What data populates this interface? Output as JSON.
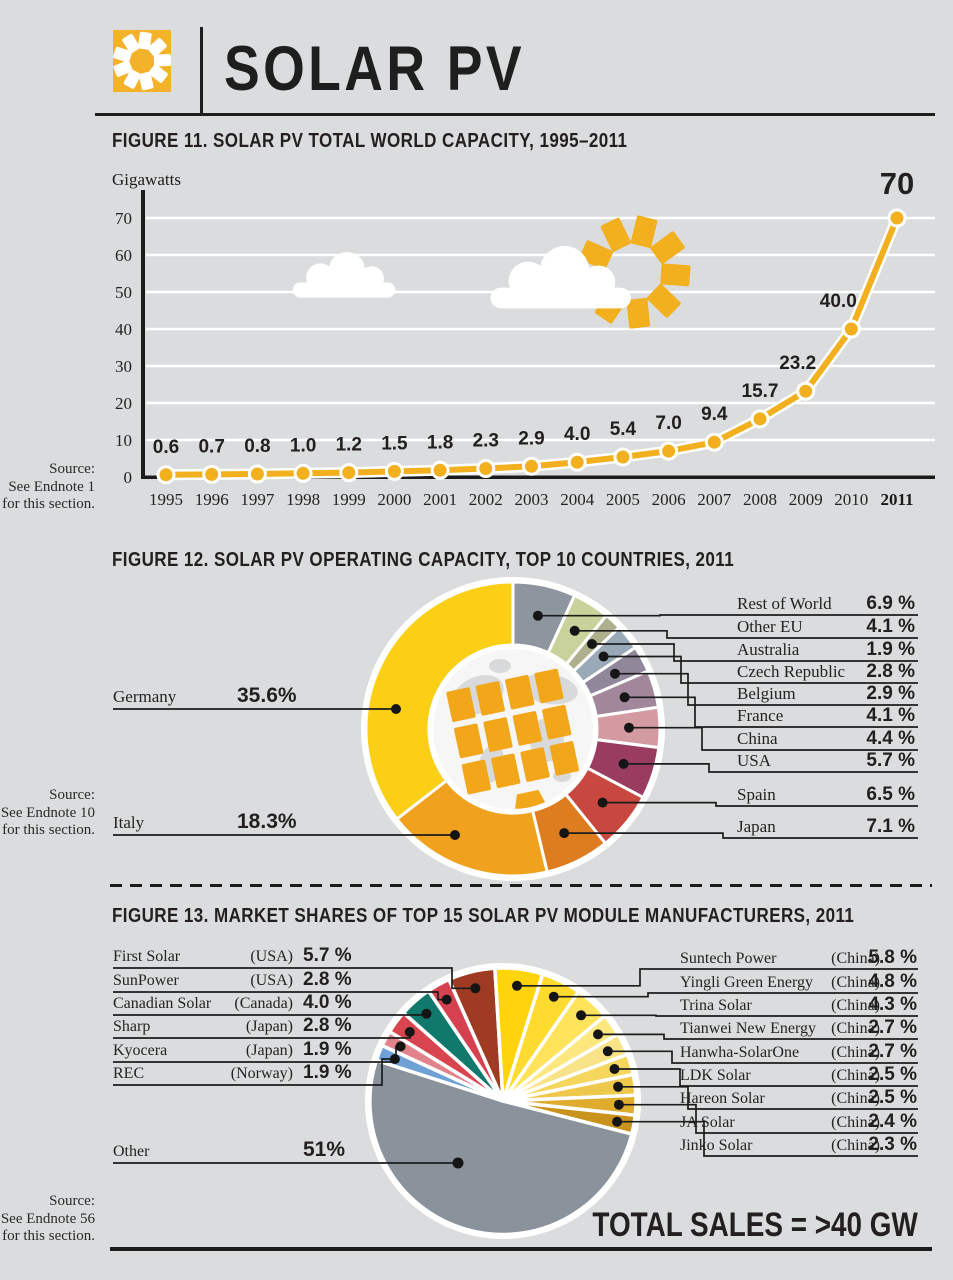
{
  "page": {
    "background": "#DBDCDD"
  },
  "header": {
    "title": "SOLAR PV",
    "logo_icon": "sun-icon",
    "logo_bg_color": "#F3B229"
  },
  "chart_data": [
    {
      "id": "figure11",
      "type": "line",
      "title": "FIGURE 11. SOLAR PV TOTAL WORLD CAPACITY, 1995–2011",
      "ylabel": "Gigawatts",
      "x": [
        "1995",
        "1996",
        "1997",
        "1998",
        "1999",
        "2000",
        "2001",
        "2002",
        "2003",
        "2004",
        "2005",
        "2006",
        "2007",
        "2008",
        "2009",
        "2010",
        "2011"
      ],
      "values": [
        0.6,
        0.7,
        0.8,
        1.0,
        1.2,
        1.5,
        1.8,
        2.3,
        2.9,
        4.0,
        5.4,
        7.0,
        9.4,
        15.7,
        23.2,
        40.0,
        70.0
      ],
      "point_labels": [
        "0.6",
        "0.7",
        "0.8",
        "1.0",
        "1.2",
        "1.5",
        "1.8",
        "2.3",
        "2.9",
        "4.0",
        "5.4",
        "7.0",
        "9.4",
        "15.7",
        "23.2",
        "40.0",
        "70"
      ],
      "yticks": [
        0,
        10,
        20,
        30,
        40,
        50,
        60,
        70
      ],
      "ylim": [
        0,
        77
      ],
      "grid": "white horizontal gridlines",
      "line_color": "#F2AF1E",
      "decorations": [
        "sun-icon",
        "cloud-icon",
        "cloud-icon"
      ],
      "source": [
        "Source:",
        "See Endnote 1",
        "for this section."
      ]
    },
    {
      "id": "figure12",
      "type": "donut",
      "title": "FIGURE 12. SOLAR PV OPERATING CAPACITY, TOP 10 COUNTRIES, 2011",
      "center_icon": "globe-with-solar-panel-icon",
      "slices": [
        {
          "label": "Rest of World",
          "value": 6.9,
          "pct_label": "6.9 %",
          "color": "#8D959E",
          "side": "right"
        },
        {
          "label": "Other EU",
          "value": 4.1,
          "pct_label": "4.1 %",
          "color": "#C9D29B",
          "side": "right"
        },
        {
          "label": "Australia",
          "value": 1.9,
          "pct_label": "1.9 %",
          "color": "#AEB08D",
          "side": "right"
        },
        {
          "label": "Czech Republic",
          "value": 2.8,
          "pct_label": "2.8 %",
          "color": "#9AA9B7",
          "side": "right"
        },
        {
          "label": "Belgium",
          "value": 2.9,
          "pct_label": "2.9 %",
          "color": "#90889A",
          "side": "right"
        },
        {
          "label": "France",
          "value": 4.1,
          "pct_label": "4.1 %",
          "color": "#A2869A",
          "side": "right"
        },
        {
          "label": "China",
          "value": 4.4,
          "pct_label": "4.4 %",
          "color": "#D49AA2",
          "side": "right"
        },
        {
          "label": "USA",
          "value": 5.7,
          "pct_label": "5.7 %",
          "color": "#993C5F",
          "side": "right"
        },
        {
          "label": "Spain",
          "value": 6.5,
          "pct_label": "6.5 %",
          "color": "#C8473F",
          "side": "right"
        },
        {
          "label": "Japan",
          "value": 7.1,
          "pct_label": "7.1 %",
          "color": "#DE7D20",
          "side": "right"
        },
        {
          "label": "Italy",
          "value": 18.3,
          "pct_label": "18.3%",
          "color": "#F0A21F",
          "side": "left"
        },
        {
          "label": "Germany",
          "value": 35.6,
          "pct_label": "35.6%",
          "color": "#FBCF16",
          "side": "left"
        }
      ],
      "source": [
        "Source:",
        "See Endnote 10",
        "for this section."
      ]
    },
    {
      "id": "figure13",
      "type": "pie",
      "title": "FIGURE 13. MARKET SHARES OF TOP 15 SOLAR PV MODULE MANUFACTURERS, 2011",
      "total_label": "TOTAL SALES = >40 GW",
      "slices": [
        {
          "label": "First Solar",
          "country": "(USA)",
          "value": 5.7,
          "pct_label": "5.7 %",
          "color": "#9E3B22",
          "side": "left"
        },
        {
          "label": "Suntech Power",
          "country": "(China)",
          "value": 5.8,
          "pct_label": "5.8 %",
          "color": "#FFD40D",
          "side": "right"
        },
        {
          "label": "Yingli Green Energy",
          "country": "(China)",
          "value": 4.8,
          "pct_label": "4.8 %",
          "color": "#FFDB30",
          "side": "right"
        },
        {
          "label": "Trina Solar",
          "country": "(China)",
          "value": 4.3,
          "pct_label": "4.3 %",
          "color": "#FFE35A",
          "side": "right"
        },
        {
          "label": "Tianwei New Energy",
          "country": "(China)",
          "value": 2.7,
          "pct_label": "2.7 %",
          "color": "#FCE87F",
          "side": "right"
        },
        {
          "label": "Hanwha-SolarOne",
          "country": "(China)",
          "value": 2.7,
          "pct_label": "2.7 %",
          "color": "#F9E388",
          "side": "right"
        },
        {
          "label": "LDK Solar",
          "country": "(China)",
          "value": 2.5,
          "pct_label": "2.5 %",
          "color": "#F5D75E",
          "side": "right"
        },
        {
          "label": "Hareon Solar",
          "country": "(China)",
          "value": 2.5,
          "pct_label": "2.5 %",
          "color": "#EEC84A",
          "side": "right"
        },
        {
          "label": "JA Solar",
          "country": "(China)",
          "value": 2.4,
          "pct_label": "2.4 %",
          "color": "#E0AC2D",
          "side": "right"
        },
        {
          "label": "Jinko Solar",
          "country": "(China)",
          "value": 2.3,
          "pct_label": "2.3 %",
          "color": "#C9931D",
          "side": "right"
        },
        {
          "label": "Other",
          "country": "",
          "value": 51,
          "pct_label": "51%",
          "color": "#8A939B",
          "side": "left"
        },
        {
          "label": "REC",
          "country": "(Norway)",
          "value": 1.9,
          "pct_label": "1.9 %",
          "color": "#6FA0D6",
          "side": "left"
        },
        {
          "label": "Kyocera",
          "country": "(Japan)",
          "value": 1.9,
          "pct_label": "1.9 %",
          "color": "#E2838B",
          "side": "left"
        },
        {
          "label": "Sharp",
          "country": "(Japan)",
          "value": 2.8,
          "pct_label": "2.8 %",
          "color": "#D8454F",
          "side": "left"
        },
        {
          "label": "Canadian Solar",
          "country": "(Canada)",
          "value": 4.0,
          "pct_label": "4.0 %",
          "color": "#10796C",
          "side": "left"
        },
        {
          "label": "SunPower",
          "country": "(USA)",
          "value": 2.8,
          "pct_label": "2.8 %",
          "color": "#D5414E",
          "side": "left"
        }
      ],
      "source": [
        "Source:",
        "See Endnote 56",
        "for this section."
      ]
    }
  ]
}
